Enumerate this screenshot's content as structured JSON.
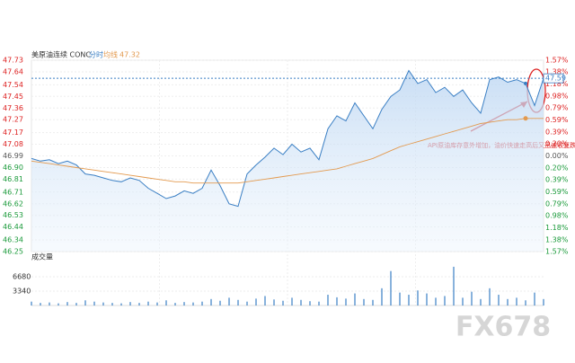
{
  "chart_data": [
    {
      "type": "line",
      "title": "美原油连续 CONC",
      "average_value": 47.32,
      "last_price": 47.59,
      "series": [
        {
          "name": "分时",
          "color": "#3a7fc4",
          "values": [
            46.97,
            46.95,
            46.96,
            46.93,
            46.95,
            46.92,
            46.85,
            46.84,
            46.82,
            46.8,
            46.79,
            46.82,
            46.8,
            46.74,
            46.7,
            46.66,
            46.68,
            46.72,
            46.7,
            46.74,
            46.88,
            46.76,
            46.62,
            46.6,
            46.85,
            46.92,
            46.98,
            47.05,
            47.0,
            47.08,
            47.02,
            47.05,
            46.96,
            47.2,
            47.3,
            47.26,
            47.4,
            47.3,
            47.2,
            47.35,
            47.45,
            47.5,
            47.65,
            47.55,
            47.58,
            47.48,
            47.52,
            47.45,
            47.5,
            47.4,
            47.32,
            47.58,
            47.6,
            47.56,
            47.58,
            47.55,
            47.38,
            47.59
          ]
        },
        {
          "name": "均线",
          "color": "#e39a4f",
          "values": [
            46.95,
            46.94,
            46.93,
            46.92,
            46.91,
            46.9,
            46.89,
            46.88,
            46.87,
            46.86,
            46.85,
            46.84,
            46.83,
            46.82,
            46.81,
            46.8,
            46.79,
            46.79,
            46.78,
            46.78,
            46.78,
            46.78,
            46.78,
            46.78,
            46.79,
            46.8,
            46.81,
            46.82,
            46.83,
            46.84,
            46.85,
            46.86,
            46.87,
            46.88,
            46.89,
            46.91,
            46.93,
            46.95,
            46.97,
            47.0,
            47.03,
            47.06,
            47.08,
            47.1,
            47.12,
            47.14,
            47.16,
            47.18,
            47.2,
            47.22,
            47.24,
            47.25,
            47.26,
            47.27,
            47.27,
            47.28,
            47.28,
            47.28
          ]
        }
      ],
      "ylim": [
        46.25,
        47.73
      ],
      "yticks": [
        47.73,
        47.64,
        47.54,
        47.45,
        47.36,
        47.27,
        47.17,
        47.08,
        46.99,
        {
          "value": 46.9,
          "label": "46.90"
        },
        46.81,
        46.71,
        46.62,
        46.53,
        46.44,
        46.34,
        46.25
      ],
      "y2lim": [
        -1.57,
        1.57
      ],
      "y2ticks": [
        {
          "value": 1.57,
          "label": "1.57%"
        },
        {
          "value": 1.38,
          "label": "1.38%"
        },
        {
          "value": 1.18,
          "label": "1.18%"
        },
        {
          "value": 0.98,
          "label": "0.98%"
        },
        {
          "value": 0.79,
          "label": "0.79%"
        },
        {
          "value": 0.59,
          "label": "0.59%"
        },
        {
          "value": 0.39,
          "label": "0.39%"
        },
        {
          "value": 0.2,
          "label": "0.20%"
        },
        {
          "value": 0,
          "label": "0.00%"
        },
        {
          "value": -0.2,
          "label": "0.20%"
        },
        {
          "value": -0.39,
          "label": "0.39%"
        },
        {
          "value": -0.59,
          "label": "0.59%"
        },
        {
          "value": -0.79,
          "label": "0.79%"
        },
        {
          "value": -0.98,
          "label": "0.98%"
        },
        {
          "value": -1.18,
          "label": "1.18%"
        },
        {
          "value": -1.38,
          "label": "1.38%"
        },
        {
          "value": -1.57,
          "label": "1.57%"
        }
      ],
      "grid": true,
      "annotation": "API原油库存意外增加，油价快速走高后又迅速收复跌幅。",
      "watermark": "FX678"
    },
    {
      "type": "bar",
      "title": "成交量",
      "color": "#3a7fc4",
      "values": [
        900,
        600,
        700,
        500,
        800,
        600,
        1200,
        900,
        700,
        600,
        500,
        800,
        600,
        900,
        700,
        1200,
        600,
        800,
        700,
        900,
        1500,
        1100,
        1800,
        1300,
        900,
        1600,
        2200,
        1400,
        1100,
        1800,
        1300,
        1000,
        900,
        2500,
        1900,
        1600,
        2800,
        1500,
        1300,
        4000,
        8000,
        3000,
        2500,
        3500,
        2800,
        1800,
        2200,
        9000,
        1800,
        3200,
        1500,
        4000,
        2500,
        1500,
        1800,
        1200,
        3000,
        1500
      ],
      "ylim": [
        0,
        10020
      ],
      "yticks": [
        3340,
        6680
      ]
    }
  ]
}
